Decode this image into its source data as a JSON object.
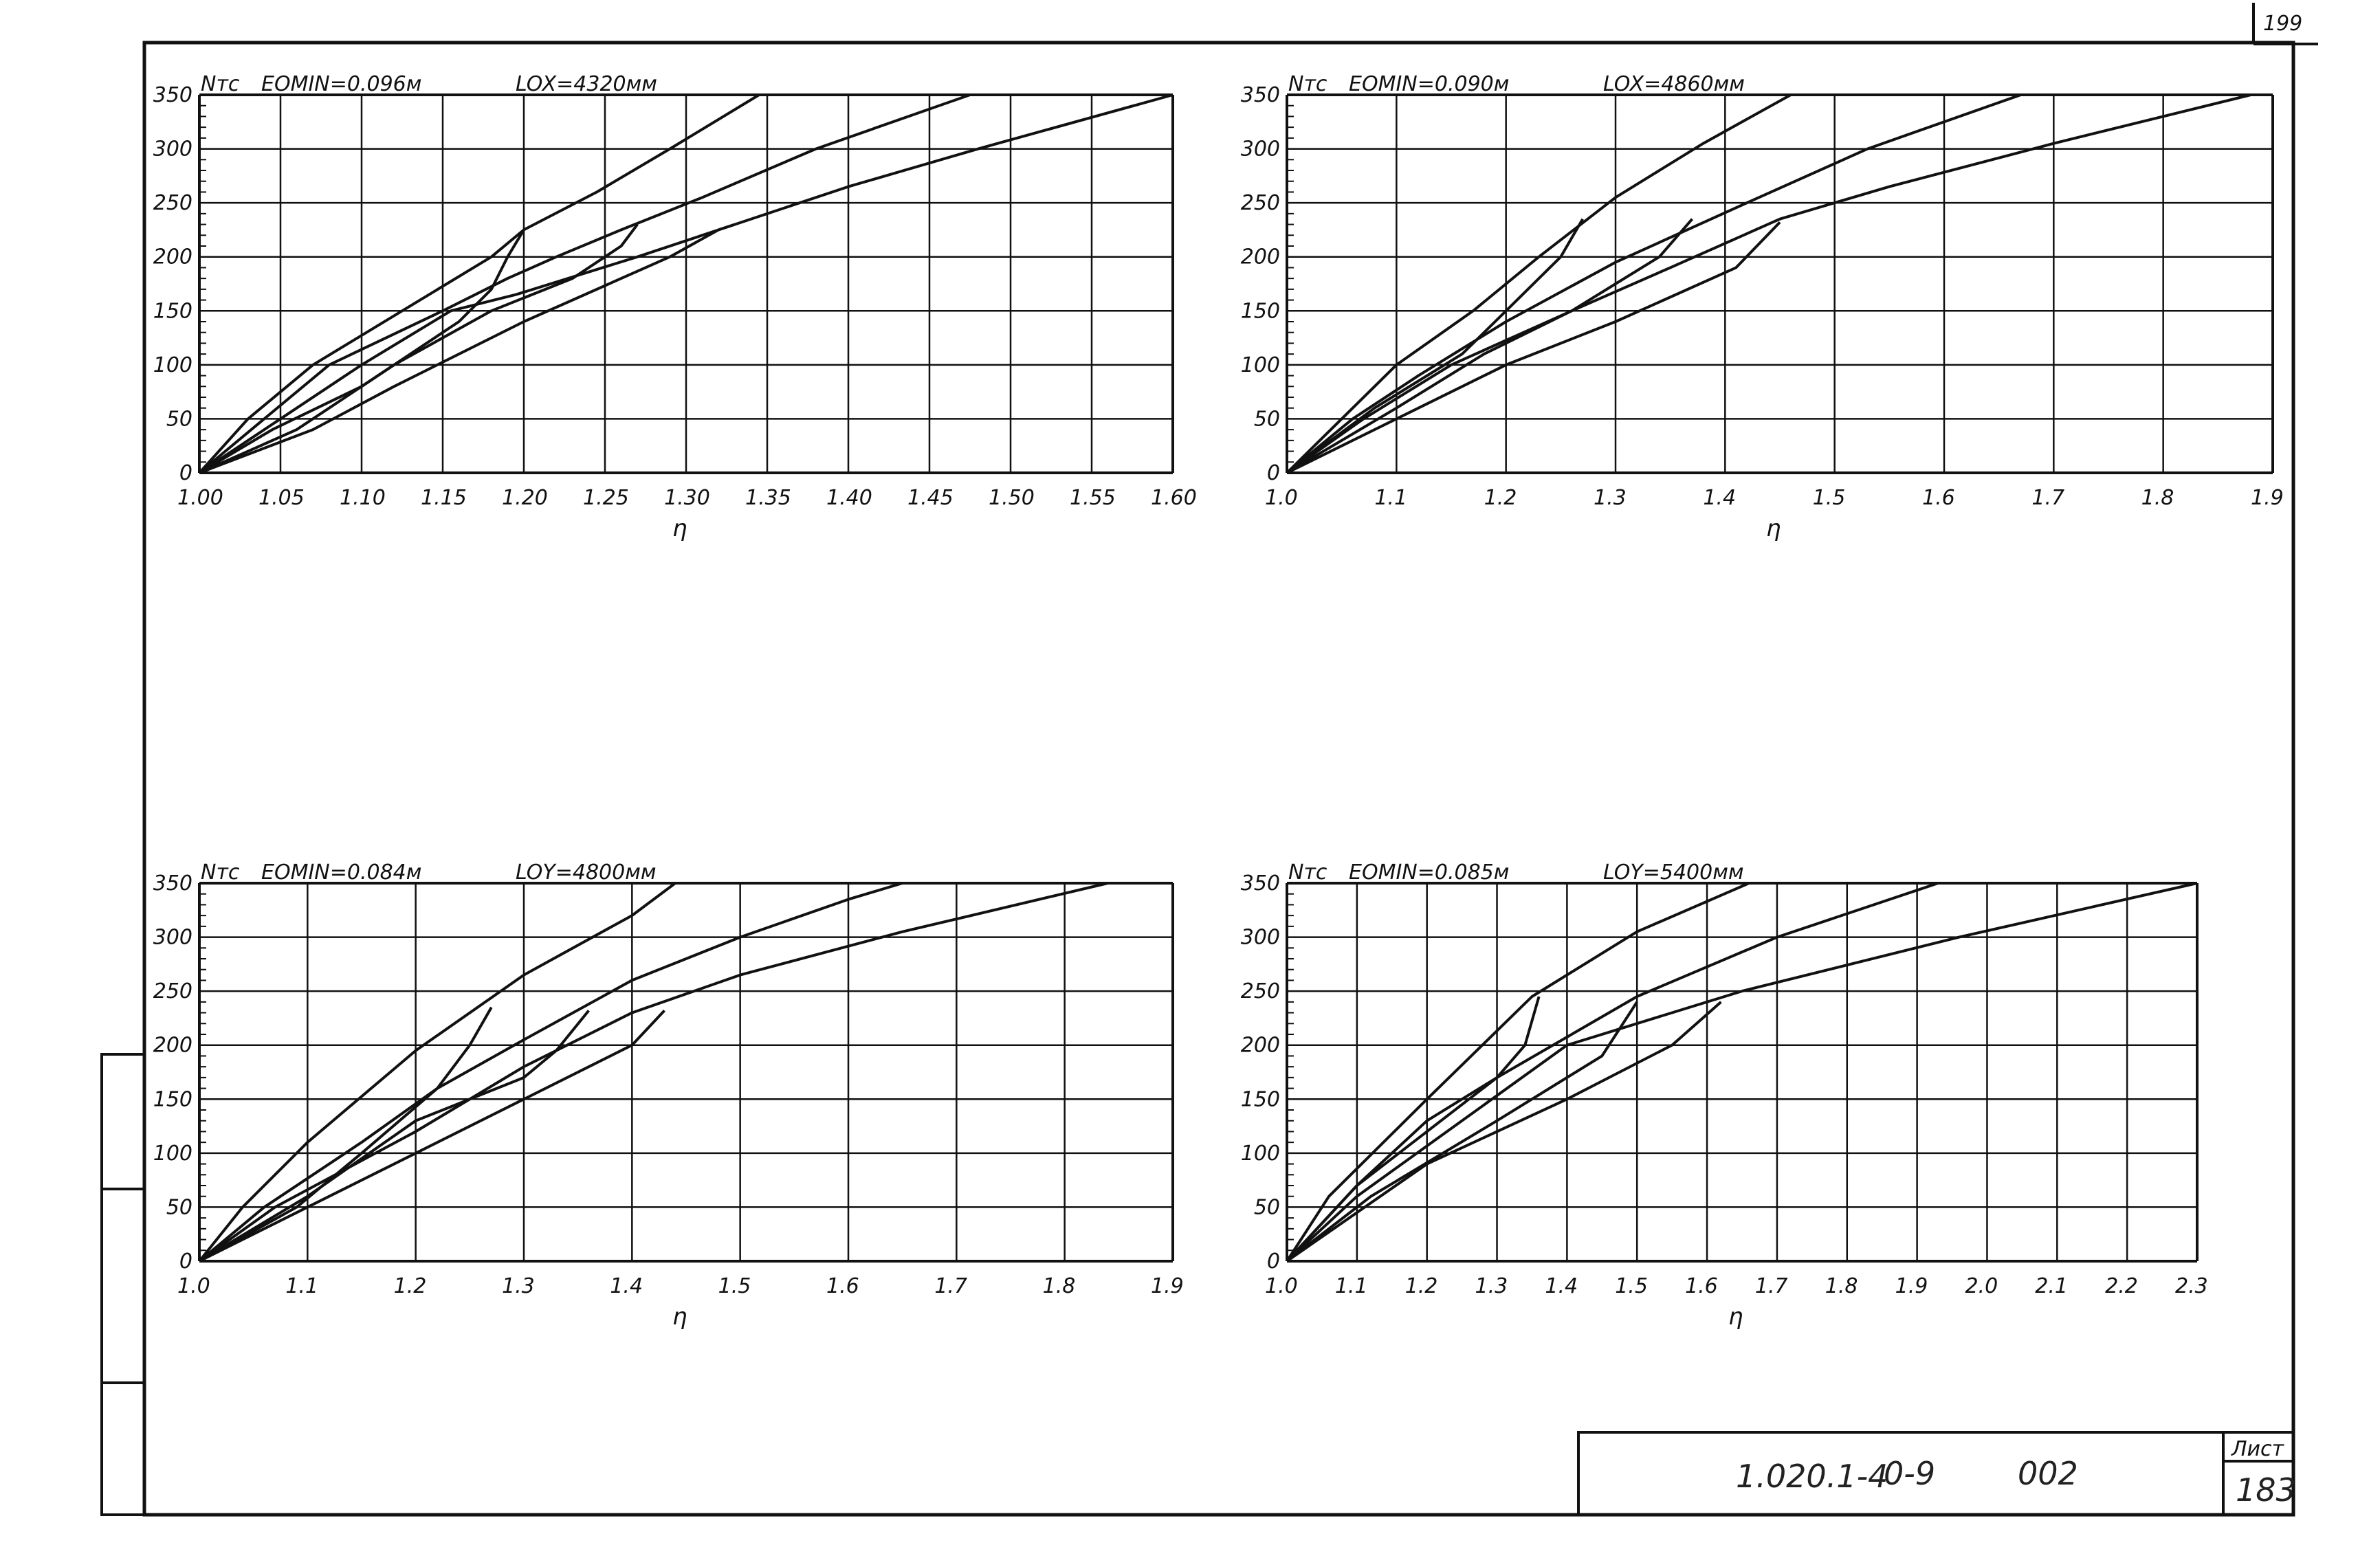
{
  "page_number": "199",
  "title_block": {
    "code": "1.020.1-4",
    "part": "0-9",
    "doc": "002",
    "sheet_label": "Лист",
    "sheet_number": "183"
  },
  "chart_data": [
    {
      "type": "line",
      "y_unit": "Nтс",
      "eomin_label": "EOMIN=0.096м",
      "length_label": "LOX=4320мм",
      "xlabel": "η",
      "xlim": [
        1.0,
        1.6
      ],
      "ylim": [
        0,
        350
      ],
      "x_ticks": [
        "1.00",
        "1.05",
        "1.10",
        "1.15",
        "1.20",
        "1.25",
        "1.30",
        "1.35",
        "1.40",
        "1.45",
        "1.50",
        "1.55",
        "1.60"
      ],
      "y_ticks": [
        "0",
        "50",
        "100",
        "150",
        "200",
        "250",
        "300",
        "350"
      ],
      "grid": true,
      "series": [
        {
          "values": [
            [
              1.0,
              0
            ],
            [
              1.03,
              50
            ],
            [
              1.07,
              100
            ],
            [
              1.125,
              150
            ],
            [
              1.18,
              200
            ],
            [
              1.2,
              225
            ],
            [
              1.245,
              260
            ],
            [
              1.29,
              300
            ],
            [
              1.345,
              350
            ]
          ]
        },
        {
          "values": [
            [
              1.0,
              0
            ],
            [
              1.04,
              50
            ],
            [
              1.08,
              100
            ],
            [
              1.15,
              150
            ],
            [
              1.19,
              180
            ],
            [
              1.22,
              200
            ],
            [
              1.26,
              225
            ],
            [
              1.31,
              255
            ],
            [
              1.38,
              300
            ],
            [
              1.475,
              350
            ]
          ]
        },
        {
          "values": [
            [
              1.0,
              0
            ],
            [
              1.05,
              50
            ],
            [
              1.1,
              100
            ],
            [
              1.155,
              150
            ],
            [
              1.195,
              165
            ],
            [
              1.27,
              200
            ],
            [
              1.33,
              230
            ],
            [
              1.4,
              265
            ],
            [
              1.48,
              300
            ],
            [
              1.6,
              350
            ]
          ]
        },
        {
          "values": [
            [
              1.0,
              0
            ],
            [
              1.045,
              40
            ],
            [
              1.1,
              80
            ],
            [
              1.16,
              140
            ],
            [
              1.18,
              170
            ],
            [
              1.19,
              200
            ],
            [
              1.2,
              225
            ]
          ]
        },
        {
          "values": [
            [
              1.0,
              0
            ],
            [
              1.06,
              40
            ],
            [
              1.12,
              100
            ],
            [
              1.18,
              150
            ],
            [
              1.23,
              180
            ],
            [
              1.26,
              210
            ],
            [
              1.27,
              230
            ]
          ]
        },
        {
          "values": [
            [
              1.0,
              0
            ],
            [
              1.07,
              40
            ],
            [
              1.12,
              80
            ],
            [
              1.2,
              140
            ],
            [
              1.29,
              200
            ],
            [
              1.32,
              225
            ],
            [
              1.33,
              230
            ]
          ]
        }
      ]
    },
    {
      "type": "line",
      "y_unit": "Nтс",
      "eomin_label": "EOMIN=0.090м",
      "length_label": "LOX=4860мм",
      "xlabel": "η",
      "xlim": [
        1.0,
        1.9
      ],
      "ylim": [
        0,
        350
      ],
      "x_ticks": [
        "1.0",
        "1.1",
        "1.2",
        "1.3",
        "1.4",
        "1.5",
        "1.6",
        "1.7",
        "1.8",
        "1.9"
      ],
      "y_ticks": [
        "0",
        "50",
        "100",
        "150",
        "200",
        "250",
        "300",
        "350"
      ],
      "grid": true,
      "series": [
        {
          "values": [
            [
              1.0,
              0
            ],
            [
              1.05,
              50
            ],
            [
              1.1,
              100
            ],
            [
              1.17,
              150
            ],
            [
              1.23,
              200
            ],
            [
              1.3,
              255
            ],
            [
              1.38,
              305
            ],
            [
              1.46,
              350
            ]
          ]
        },
        {
          "values": [
            [
              1.0,
              0
            ],
            [
              1.06,
              50
            ],
            [
              1.12,
              90
            ],
            [
              1.2,
              140
            ],
            [
              1.3,
              195
            ],
            [
              1.42,
              250
            ],
            [
              1.53,
              300
            ],
            [
              1.67,
              350
            ]
          ]
        },
        {
          "values": [
            [
              1.0,
              0
            ],
            [
              1.07,
              50
            ],
            [
              1.15,
              100
            ],
            [
              1.26,
              150
            ],
            [
              1.35,
              190
            ],
            [
              1.45,
              235
            ],
            [
              1.55,
              265
            ],
            [
              1.7,
              305
            ],
            [
              1.88,
              350
            ]
          ]
        },
        {
          "values": [
            [
              1.0,
              0
            ],
            [
              1.08,
              60
            ],
            [
              1.16,
              110
            ],
            [
              1.2,
              150
            ],
            [
              1.25,
              200
            ],
            [
              1.27,
              235
            ]
          ]
        },
        {
          "values": [
            [
              1.0,
              0
            ],
            [
              1.1,
              60
            ],
            [
              1.18,
              110
            ],
            [
              1.26,
              150
            ],
            [
              1.34,
              200
            ],
            [
              1.37,
              235
            ]
          ]
        },
        {
          "values": [
            [
              1.0,
              0
            ],
            [
              1.1,
              50
            ],
            [
              1.2,
              100
            ],
            [
              1.3,
              140
            ],
            [
              1.41,
              190
            ],
            [
              1.45,
              232
            ]
          ]
        }
      ]
    },
    {
      "type": "line",
      "y_unit": "Nтс",
      "eomin_label": "EOMIN=0.084м",
      "length_label": "LOY=4800мм",
      "xlabel": "η",
      "xlim": [
        1.0,
        1.9
      ],
      "ylim": [
        0,
        350
      ],
      "x_ticks": [
        "1.0",
        "1.1",
        "1.2",
        "1.3",
        "1.4",
        "1.5",
        "1.6",
        "1.7",
        "1.8",
        "1.9"
      ],
      "y_ticks": [
        "0",
        "50",
        "100",
        "150",
        "200",
        "250",
        "300",
        "350"
      ],
      "grid": true,
      "series": [
        {
          "values": [
            [
              1.0,
              0
            ],
            [
              1.04,
              50
            ],
            [
              1.1,
              110
            ],
            [
              1.2,
              195
            ],
            [
              1.3,
              265
            ],
            [
              1.4,
              320
            ],
            [
              1.44,
              350
            ]
          ]
        },
        {
          "values": [
            [
              1.0,
              0
            ],
            [
              1.06,
              50
            ],
            [
              1.15,
              110
            ],
            [
              1.22,
              160
            ],
            [
              1.3,
              205
            ],
            [
              1.4,
              260
            ],
            [
              1.5,
              300
            ],
            [
              1.6,
              335
            ],
            [
              1.65,
              350
            ]
          ]
        },
        {
          "values": [
            [
              1.0,
              0
            ],
            [
              1.07,
              50
            ],
            [
              1.2,
              120
            ],
            [
              1.3,
              180
            ],
            [
              1.4,
              230
            ],
            [
              1.5,
              265
            ],
            [
              1.65,
              305
            ],
            [
              1.84,
              350
            ]
          ]
        },
        {
          "values": [
            [
              1.0,
              0
            ],
            [
              1.09,
              50
            ],
            [
              1.15,
              100
            ],
            [
              1.22,
              160
            ],
            [
              1.25,
              200
            ],
            [
              1.27,
              235
            ]
          ]
        },
        {
          "values": [
            [
              1.0,
              0
            ],
            [
              1.1,
              60
            ],
            [
              1.2,
              130
            ],
            [
              1.3,
              170
            ],
            [
              1.33,
              195
            ],
            [
              1.36,
              232
            ]
          ]
        },
        {
          "values": [
            [
              1.0,
              0
            ],
            [
              1.1,
              50
            ],
            [
              1.2,
              100
            ],
            [
              1.3,
              150
            ],
            [
              1.4,
              200
            ],
            [
              1.43,
              232
            ]
          ]
        }
      ]
    },
    {
      "type": "line",
      "y_unit": "Nтс",
      "eomin_label": "EOMIN=0.085м",
      "length_label": "LOY=5400мм",
      "xlabel": "η",
      "xlim": [
        1.0,
        2.3
      ],
      "ylim": [
        0,
        350
      ],
      "x_ticks": [
        "1.0",
        "1.1",
        "1.2",
        "1.3",
        "1.4",
        "1.5",
        "1.6",
        "1.7",
        "1.8",
        "1.9",
        "2.0",
        "2.1",
        "2.2",
        "2.3"
      ],
      "y_ticks": [
        "0",
        "50",
        "100",
        "150",
        "200",
        "250",
        "300",
        "350"
      ],
      "grid": true,
      "series": [
        {
          "values": [
            [
              1.0,
              0
            ],
            [
              1.06,
              60
            ],
            [
              1.2,
              150
            ],
            [
              1.35,
              245
            ],
            [
              1.5,
              305
            ],
            [
              1.66,
              350
            ]
          ]
        },
        {
          "values": [
            [
              1.0,
              0
            ],
            [
              1.1,
              70
            ],
            [
              1.3,
              170
            ],
            [
              1.5,
              245
            ],
            [
              1.7,
              300
            ],
            [
              1.93,
              350
            ]
          ]
        },
        {
          "values": [
            [
              1.0,
              0
            ],
            [
              1.1,
              60
            ],
            [
              1.4,
              200
            ],
            [
              1.65,
              250
            ],
            [
              1.96,
              300
            ],
            [
              2.3,
              350
            ]
          ]
        },
        {
          "values": [
            [
              1.0,
              0
            ],
            [
              1.1,
              70
            ],
            [
              1.2,
              130
            ],
            [
              1.3,
              170
            ],
            [
              1.34,
              200
            ],
            [
              1.36,
              245
            ]
          ]
        },
        {
          "values": [
            [
              1.0,
              0
            ],
            [
              1.12,
              60
            ],
            [
              1.3,
              130
            ],
            [
              1.45,
              190
            ],
            [
              1.5,
              240
            ]
          ]
        },
        {
          "values": [
            [
              1.0,
              0
            ],
            [
              1.2,
              90
            ],
            [
              1.4,
              150
            ],
            [
              1.55,
              200
            ],
            [
              1.62,
              240
            ]
          ]
        }
      ]
    }
  ]
}
